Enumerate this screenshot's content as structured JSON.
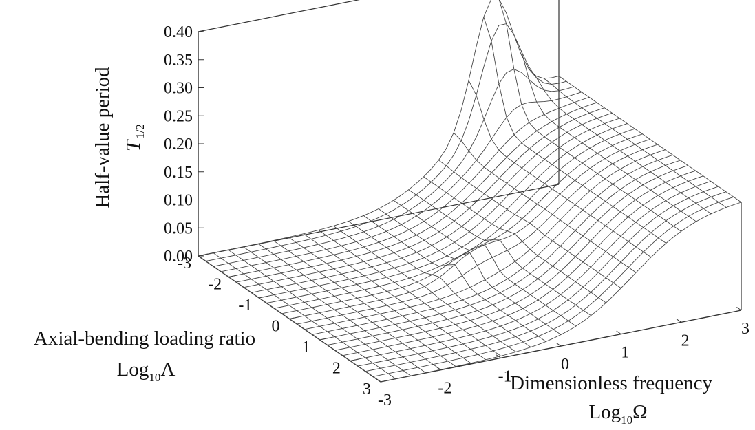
{
  "chart_data": {
    "type": "surface3d",
    "title": "",
    "zlabel": "Half-value period",
    "zlabel_symbol": {
      "main": "T",
      "sub": "1/2"
    },
    "xlabel": "Axial-bending loading ratio",
    "xlabel_log": {
      "main": "Log",
      "sub": "10",
      "var": "Λ"
    },
    "ylabel": "Dimensionless frequency",
    "ylabel_log": {
      "main": "Log",
      "sub": "10",
      "var": "Ω"
    },
    "x_axis": {
      "name": "Log10 Λ",
      "range": [
        -3,
        3
      ],
      "ticks": [
        "-3",
        "-2",
        "-1",
        "0",
        "1",
        "2",
        "3"
      ]
    },
    "y_axis": {
      "name": "Log10 Ω",
      "range": [
        -3,
        3
      ],
      "ticks": [
        "-3",
        "-2",
        "-1",
        "0",
        "1",
        "2",
        "3"
      ]
    },
    "z_axis": {
      "range": [
        0,
        0.4
      ],
      "ticks": [
        "0.00",
        "0.05",
        "0.10",
        "0.15",
        "0.20",
        "0.25",
        "0.30",
        "0.35",
        "0.40"
      ]
    },
    "surface": {
      "grid": "mesh over Log10 Λ and Log10 Ω, steps of 0.25",
      "plateau_value": 0.2,
      "low_frequency_value": 0.0,
      "transition_center_log10_omega": 1.2,
      "transition_width_log10_omega": 0.55,
      "peak_value": 0.4,
      "peak_location_log10_lambda": -3,
      "ridge_location_log10_lambda": 0
    }
  }
}
